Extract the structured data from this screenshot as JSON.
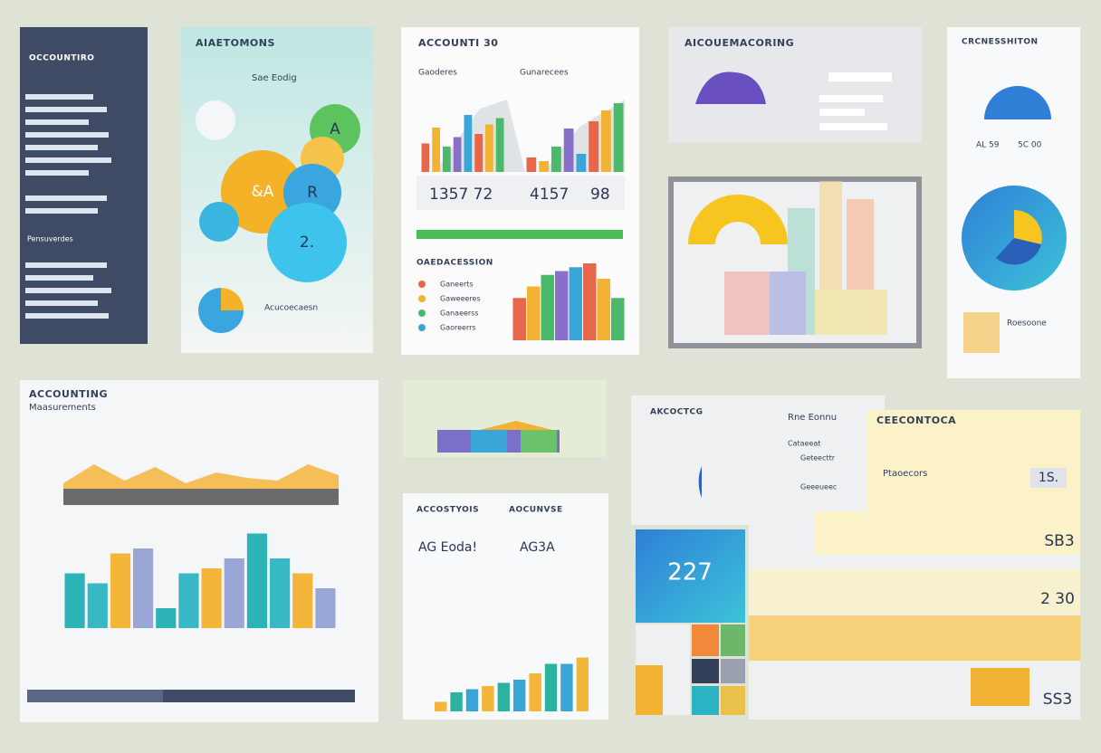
{
  "sidebar": {
    "title": "OCCOUNTIRO",
    "section": "Pensuverdes"
  },
  "profile_card": {
    "title": "AIAETOMONS",
    "subtitle": "Sae Eodig",
    "bubbles": [
      "A",
      "&A",
      "R",
      "2."
    ],
    "footer": "Acucoecaesn"
  },
  "metrics_card": {
    "title": "ACCOUNTI 30",
    "tabs": [
      "Gaoderes",
      "Gunarecees"
    ],
    "kpis": [
      "1357 72",
      "4157",
      "98"
    ],
    "section": "OAEDACESSION",
    "legend": [
      "Ganeerts",
      "Gaweeeres",
      "Ganaeerss",
      "Gaoreerrs"
    ],
    "top_left_bars": [
      45,
      70,
      40,
      55,
      90,
      60,
      75,
      85
    ],
    "top_right_bars": [
      20,
      15,
      35,
      60,
      25,
      70,
      85,
      95
    ],
    "bottom_bars": [
      55,
      70,
      85,
      90,
      95,
      100,
      80,
      55
    ],
    "colors": [
      "#e8674a",
      "#f2b233",
      "#4cb86b",
      "#8a6fc9",
      "#3aa6d8"
    ]
  },
  "trend_card": {
    "title": "AICOUEMACORING"
  },
  "donut_card": {
    "title": "CRCNESSHITON",
    "labels": [
      "AL 59",
      "5C 00"
    ],
    "note": "Roesoone"
  },
  "main_chart": {
    "title": "ACCOUNTING",
    "subtitle": "Maasurements",
    "area": [
      40,
      75,
      45,
      70,
      40,
      60,
      50,
      45,
      75,
      55
    ],
    "bars": [
      55,
      45,
      75,
      80,
      20,
      55,
      60,
      70,
      95,
      70,
      55,
      40
    ],
    "colors": [
      "#2bb3b5",
      "#37b8c4",
      "#f3b53a",
      "#9aa7d6"
    ]
  },
  "report_card": {
    "title": "ACCOSTYOIS",
    "title2": "AOCUNVSE",
    "kpis": [
      "AG Eoda!",
      "AG3A"
    ],
    "bars": [
      15,
      30,
      35,
      40,
      45,
      50,
      60,
      75,
      75,
      85
    ],
    "colors": [
      "#f3b53a",
      "#2bb3a0",
      "#3aa6d8"
    ]
  },
  "summary_card": {
    "title": "AKCOCTCG",
    "subtitle": "Rne Eonnu",
    "items": [
      "Cataeeat",
      "Geteecttr",
      "Geeeueec"
    ]
  },
  "yellow_card": {
    "title": "CEECONTOCA",
    "label": "Ptaoecors",
    "value": "1S."
  },
  "tile": {
    "value": "227"
  },
  "table": {
    "values": [
      "SB3",
      "2 30",
      "SS3"
    ]
  }
}
